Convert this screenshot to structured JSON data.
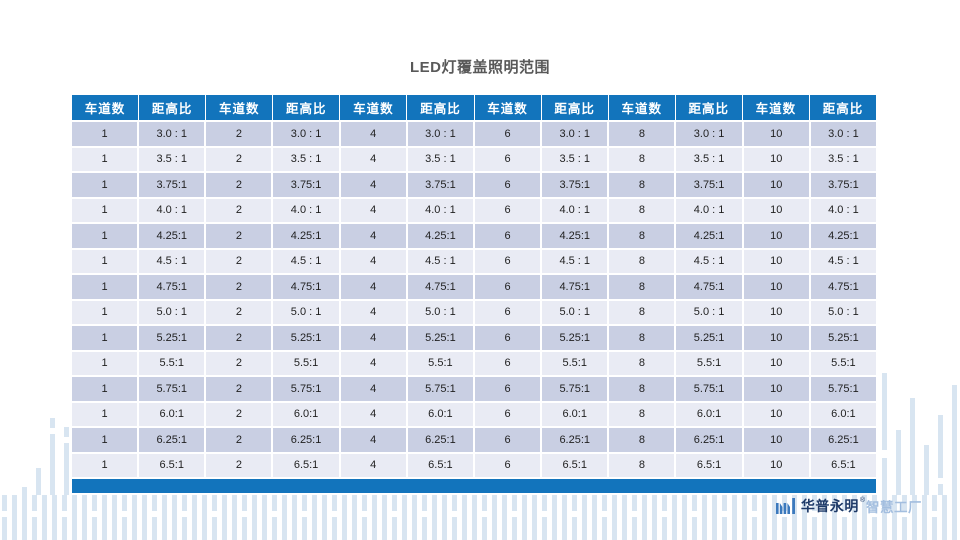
{
  "title": "LED灯覆盖照明范围",
  "table": {
    "columns_repeat": [
      "车道数",
      "距高比"
    ],
    "lanes": [
      "1",
      "2",
      "4",
      "6",
      "8",
      "10"
    ],
    "ratios": [
      "3.0 : 1",
      "3.5 : 1",
      "3.75:1",
      "4.0 : 1",
      "4.25:1",
      "4.5 : 1",
      "4.75:1",
      "5.0 : 1",
      "5.25:1",
      "5.5:1",
      "5.75:1",
      "6.0:1",
      "6.25:1",
      "6.5:1"
    ],
    "colors": {
      "header_bg": "#1274BC",
      "row_dark": "#C9CFE3",
      "row_light": "#E9EBF4",
      "footer_bar": "#1274BC"
    }
  },
  "logo": {
    "brand": "华普永明",
    "reg_mark": "®",
    "suffix": "智慧工厂",
    "icon": "hpwinner-mark",
    "icon_color": "#3B79BD"
  },
  "decor": {
    "bar_color": "#D8E5F1"
  }
}
